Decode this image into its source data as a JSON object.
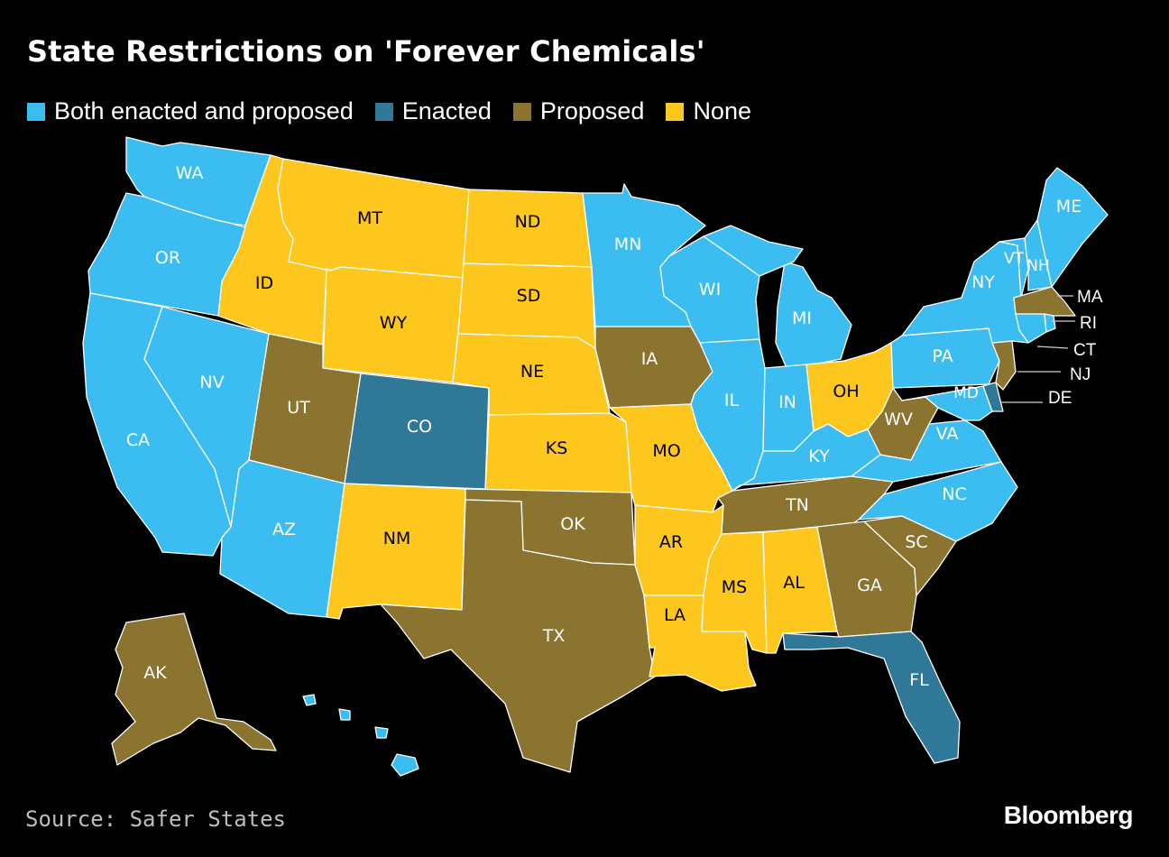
{
  "title": "State Restrictions on 'Forever Chemicals'",
  "legend": [
    {
      "key": "both",
      "label": "Both enacted and proposed",
      "color": "#3bbdf2"
    },
    {
      "key": "enacted",
      "label": "Enacted",
      "color": "#2f7898"
    },
    {
      "key": "proposed",
      "label": "Proposed",
      "color": "#8a7430"
    },
    {
      "key": "none",
      "label": "None",
      "color": "#fdc71d"
    }
  ],
  "states": {
    "WA": {
      "label": "WA",
      "status": "both"
    },
    "OR": {
      "label": "OR",
      "status": "both"
    },
    "CA": {
      "label": "CA",
      "status": "both"
    },
    "NV": {
      "label": "NV",
      "status": "both"
    },
    "ID": {
      "label": "ID",
      "status": "none"
    },
    "MT": {
      "label": "MT",
      "status": "none"
    },
    "WY": {
      "label": "WY",
      "status": "none"
    },
    "UT": {
      "label": "UT",
      "status": "proposed"
    },
    "AZ": {
      "label": "AZ",
      "status": "both"
    },
    "CO": {
      "label": "CO",
      "status": "enacted"
    },
    "NM": {
      "label": "NM",
      "status": "none"
    },
    "ND": {
      "label": "ND",
      "status": "none"
    },
    "SD": {
      "label": "SD",
      "status": "none"
    },
    "NE": {
      "label": "NE",
      "status": "none"
    },
    "KS": {
      "label": "KS",
      "status": "none"
    },
    "OK": {
      "label": "OK",
      "status": "proposed"
    },
    "TX": {
      "label": "TX",
      "status": "proposed"
    },
    "MN": {
      "label": "MN",
      "status": "both"
    },
    "IA": {
      "label": "IA",
      "status": "proposed"
    },
    "MO": {
      "label": "MO",
      "status": "none"
    },
    "AR": {
      "label": "AR",
      "status": "none"
    },
    "LA": {
      "label": "LA",
      "status": "none"
    },
    "WI": {
      "label": "WI",
      "status": "both"
    },
    "IL": {
      "label": "IL",
      "status": "both"
    },
    "MI": {
      "label": "MI",
      "status": "both"
    },
    "IN": {
      "label": "IN",
      "status": "both"
    },
    "OH": {
      "label": "OH",
      "status": "none"
    },
    "KY": {
      "label": "KY",
      "status": "both"
    },
    "TN": {
      "label": "TN",
      "status": "proposed"
    },
    "MS": {
      "label": "MS",
      "status": "none"
    },
    "AL": {
      "label": "AL",
      "status": "none"
    },
    "GA": {
      "label": "GA",
      "status": "proposed"
    },
    "FL": {
      "label": "FL",
      "status": "enacted"
    },
    "SC": {
      "label": "SC",
      "status": "proposed"
    },
    "NC": {
      "label": "NC",
      "status": "both"
    },
    "VA": {
      "label": "VA",
      "status": "both"
    },
    "WV": {
      "label": "WV",
      "status": "proposed"
    },
    "PA": {
      "label": "PA",
      "status": "both"
    },
    "NY": {
      "label": "NY",
      "status": "both"
    },
    "VT": {
      "label": "VT",
      "status": "both"
    },
    "NH": {
      "label": "NH",
      "status": "both"
    },
    "ME": {
      "label": "ME",
      "status": "both"
    },
    "MA": {
      "label": "MA",
      "status": "proposed"
    },
    "RI": {
      "label": "RI",
      "status": "both"
    },
    "CT": {
      "label": "CT",
      "status": "both"
    },
    "NJ": {
      "label": "NJ",
      "status": "proposed"
    },
    "DE": {
      "label": "DE",
      "status": "enacted"
    },
    "MD": {
      "label": "MD",
      "status": "both"
    },
    "AK": {
      "label": "AK",
      "status": "proposed"
    },
    "HI": {
      "label": "",
      "status": "both"
    }
  },
  "source": "Source: Safer States",
  "brand": "Bloomberg"
}
